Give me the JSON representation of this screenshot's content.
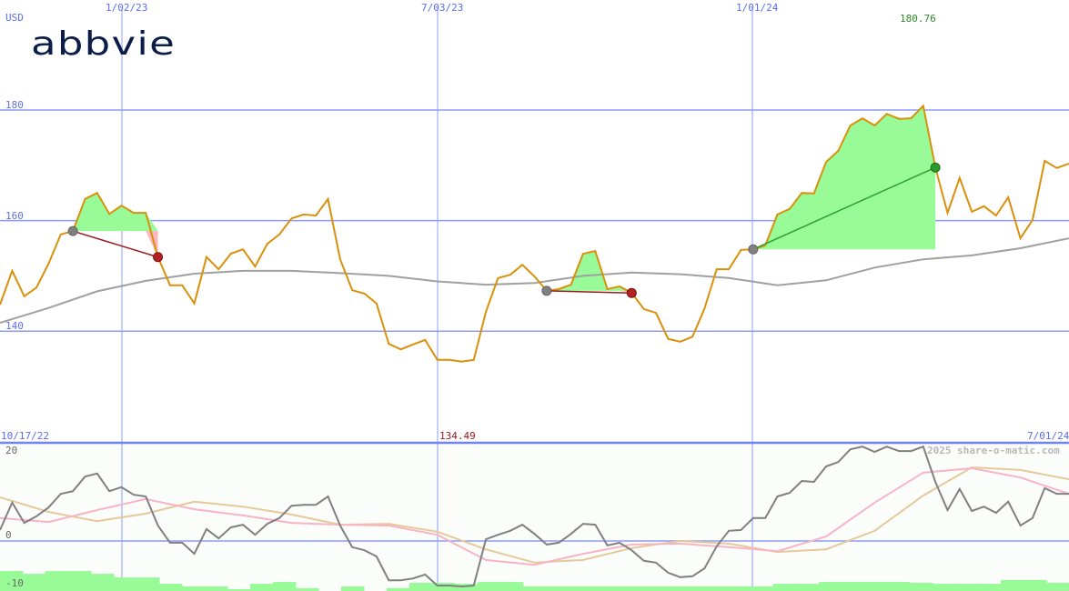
{
  "currency_label": "USD",
  "logo_text": "abbvie",
  "top_date_labels": [
    "1/02/23",
    "7/03/23",
    "1/01/24"
  ],
  "max_label": "180.76",
  "min_label": "134.49",
  "start_date_label": "10/17/22",
  "end_date_label": "7/01/24",
  "copyright": "2025 share-o-matic.com",
  "colors": {
    "grid": "#8c9cf4",
    "price": "#d9900b",
    "moving_average": "#a0a0a0",
    "gain_fill": "#98fb98",
    "loss_fill": "#ffb6c1",
    "oscillator": "#808080",
    "signal_pink": "#f8b4c4",
    "signal_tan": "#e6c99a",
    "volume": "#98fb98",
    "max_label": "#2a8a2a",
    "min_label": "#a01818"
  },
  "chart_data": [
    {
      "type": "line",
      "title": "",
      "ylabel": "USD",
      "x_start": "10/17/22",
      "x_end": "7/01/24",
      "x_interval": "weekly",
      "y_ticks": [
        180,
        160,
        140
      ],
      "ylim": [
        129.5,
        191
      ],
      "grid": true,
      "max": 180.76,
      "min": 134.49,
      "price": [
        144.8,
        150.9,
        146.3,
        147.9,
        152.2,
        157.5,
        158.1,
        163.9,
        165.0,
        161.2,
        162.7,
        161.4,
        161.4,
        153.4,
        148.3,
        148.3,
        145.0,
        153.4,
        151.2,
        154.0,
        154.8,
        151.7,
        155.8,
        157.5,
        160.4,
        161.1,
        160.9,
        163.9,
        153.0,
        147.4,
        146.8,
        145.0,
        137.7,
        136.7,
        137.6,
        138.4,
        134.8,
        134.8,
        134.49,
        134.8,
        143.5,
        149.6,
        150.2,
        152.0,
        149.9,
        147.3,
        147.6,
        148.4,
        154.0,
        154.5,
        147.6,
        148.1,
        146.9,
        144.0,
        143.3,
        138.6,
        138.1,
        139.0,
        144.1,
        151.2,
        151.2,
        154.7,
        154.8,
        155.5,
        161.1,
        162.1,
        165.0,
        164.9,
        170.6,
        172.6,
        177.2,
        178.5,
        177.2,
        179.3,
        178.4,
        178.5,
        180.76,
        169.6,
        161.4,
        167.7,
        161.6,
        162.6,
        160.9,
        164.2,
        156.8,
        160.1,
        170.8,
        169.5,
        170.3
      ],
      "moving_average": [
        141.5,
        144.2,
        147.2,
        149.1,
        150.4,
        150.9,
        150.9,
        150.5,
        150.0,
        149.0,
        148.4,
        148.7,
        150.0,
        150.6,
        150.3,
        149.6,
        148.3,
        149.2,
        151.5,
        153.0,
        153.7,
        155.0,
        156.8
      ],
      "trades": [
        {
          "entry_date": "11/28/22",
          "exit_date": "1/16/23",
          "result": "loss"
        },
        {
          "entry_date": "8/28/23",
          "exit_date": "10/16/23",
          "result": "loss"
        },
        {
          "entry_date": "12/25/23",
          "exit_date": "4/08/24",
          "result": "gain"
        }
      ]
    },
    {
      "type": "line",
      "title": "",
      "y_ticks": [
        20,
        0,
        -10
      ],
      "ylim": [
        -11.5,
        22
      ],
      "grid": true,
      "oscillator": [
        2.5,
        8.7,
        4.1,
        5.6,
        7.6,
        10.7,
        11.3,
        14.6,
        15.3,
        11.3,
        12.2,
        10.5,
        10.1,
        3.5,
        -0.4,
        -0.4,
        -2.9,
        2.7,
        0.6,
        3.1,
        3.7,
        1.4,
        3.9,
        5.2,
        8.0,
        8.2,
        8.2,
        10.1,
        3.5,
        -1.4,
        -2.1,
        -3.5,
        -8.9,
        -8.9,
        -8.5,
        -7.6,
        -10.1,
        -10.1,
        -10.3,
        -10.1,
        0.4,
        1.4,
        2.3,
        3.7,
        1.6,
        -0.8,
        -0.4,
        1.6,
        3.9,
        3.7,
        -1.0,
        -0.4,
        -2.1,
        -4.5,
        -4.9,
        -7.2,
        -8.2,
        -8.0,
        -6.2,
        -1.2,
        2.3,
        2.5,
        5.2,
        5.2,
        10.1,
        10.9,
        13.6,
        13.4,
        16.9,
        17.9,
        20.8,
        21.4,
        20.2,
        21.4,
        20.4,
        20.4,
        21.4,
        13.4,
        7.0,
        11.8,
        6.8,
        7.8,
        6.4,
        8.9,
        3.5,
        5.2,
        12.0,
        10.7,
        10.7
      ],
      "signal_pink": [
        5.2,
        4.3,
        7.0,
        9.5,
        7.2,
        5.8,
        4.1,
        3.7,
        3.5,
        1.4,
        -4.3,
        -5.4,
        -2.9,
        -0.8,
        -0.6,
        -1.4,
        -2.3,
        1.0,
        8.7,
        15.5,
        16.5,
        14.4,
        10.7
      ],
      "signal_tan": [
        9.9,
        6.6,
        4.5,
        6.2,
        8.9,
        7.8,
        6.0,
        3.7,
        3.9,
        2.1,
        -1.9,
        -4.9,
        -4.3,
        -1.6,
        0.0,
        -0.6,
        -2.5,
        -1.9,
        2.3,
        10.3,
        16.7,
        16.1,
        14.0
      ],
      "volume_relative": [
        1.0,
        0.86,
        1.0,
        1.0,
        0.86,
        0.68,
        0.68,
        0.36,
        0.23,
        0.23,
        0.09,
        0.36,
        0.45,
        0.14,
        0.0,
        0.23,
        0.0,
        0.14,
        0.41,
        0.41,
        0.36,
        0.45,
        0.45,
        0.23,
        0.23,
        0.23,
        0.23,
        0.23,
        0.23,
        0.23,
        0.23,
        0.23,
        0.23,
        0.23,
        0.36,
        0.36,
        0.45,
        0.45,
        0.45,
        0.45,
        0.41,
        0.36,
        0.36,
        0.36,
        0.55,
        0.55,
        0.41
      ]
    }
  ]
}
